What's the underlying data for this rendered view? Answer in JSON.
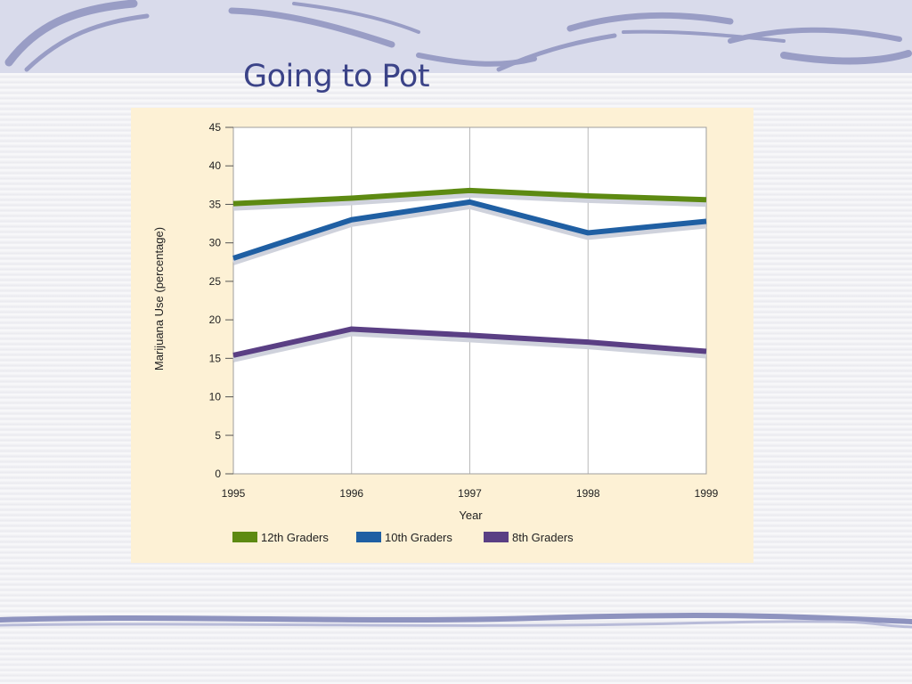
{
  "slide": {
    "title": "Going to Pot"
  },
  "chart_data": {
    "type": "line",
    "title": "",
    "xlabel": "Year",
    "ylabel": "Marijuana Use (percentage)",
    "ylim": [
      0,
      45
    ],
    "yticks": [
      "0",
      "5",
      "10",
      "15",
      "20",
      "25",
      "30",
      "35",
      "40",
      "45"
    ],
    "x": [
      "1995",
      "1996",
      "1997",
      "1998",
      "1999"
    ],
    "grid": "vertical",
    "legend_position": "bottom",
    "series": [
      {
        "name": "12th Graders",
        "color": "#5d8a12",
        "values": [
          35.1,
          35.8,
          36.8,
          36.1,
          35.6
        ]
      },
      {
        "name": "10th Graders",
        "color": "#1f5fa3",
        "values": [
          28.0,
          33.0,
          35.3,
          31.3,
          32.8
        ]
      },
      {
        "name": "8th Graders",
        "color": "#5a3f84",
        "values": [
          15.4,
          18.8,
          18.0,
          17.1,
          15.9
        ]
      }
    ]
  }
}
